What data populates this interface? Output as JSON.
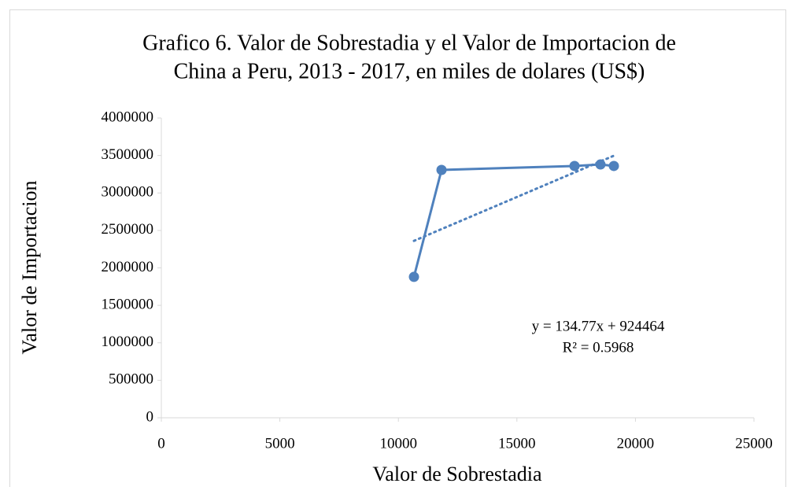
{
  "chart_data": {
    "type": "scatter",
    "title": [
      "Grafico 6. Valor de Sobrestadia y el Valor de Importacion de",
      "China a Peru, 2013 - 2017, en miles de dolares (US$)"
    ],
    "x_label": "Valor de Sobrestadia",
    "y_label": "Valor de Importacion",
    "series": [
      {
        "name": "Valor de Importacion",
        "color": "#4f81bd",
        "x": [
          10657,
          11820,
          17430,
          18526,
          19090
        ],
        "values": [
          1880000,
          3307000,
          3360000,
          3380000,
          3360000
        ]
      }
    ],
    "trendline": {
      "slope": 134.77,
      "intercept": 924464,
      "label": "y = 134.77x + 924464",
      "r2_label": "R² = 0.5968"
    },
    "xlim": [
      0,
      25000
    ],
    "xticks": [
      0,
      5000,
      10000,
      15000,
      20000,
      25000
    ],
    "ylim": [
      0,
      4000000
    ],
    "yticks": [
      0,
      500000,
      1000000,
      1500000,
      2000000,
      2500000,
      3000000,
      3500000,
      4000000
    ],
    "grid": false
  }
}
